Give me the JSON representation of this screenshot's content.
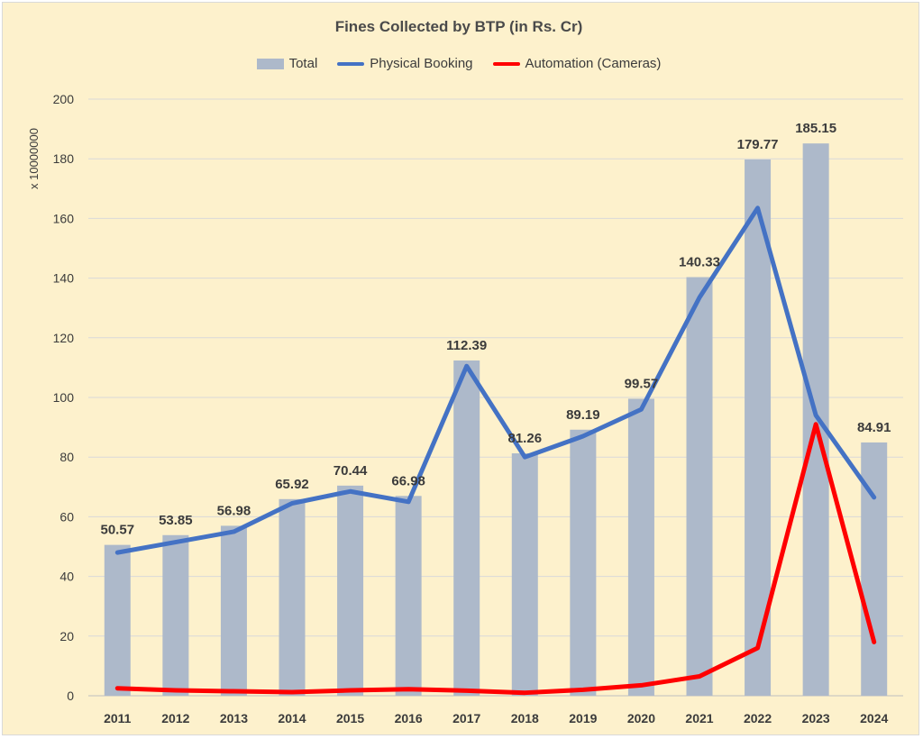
{
  "chart_data": {
    "type": "bar",
    "title": "Fines Collected by BTP (in Rs. Cr)",
    "ylabel": "x 10000000",
    "xlabel": "",
    "ylim": [
      0,
      200
    ],
    "yticks": [
      0,
      20,
      40,
      60,
      80,
      100,
      120,
      140,
      160,
      180,
      200
    ],
    "grid": true,
    "legend_position": "top",
    "categories": [
      "2011",
      "2012",
      "2013",
      "2014",
      "2015",
      "2016",
      "2017",
      "2018",
      "2019",
      "2020",
      "2021",
      "2022",
      "2023",
      "2024"
    ],
    "series": [
      {
        "name": "Total",
        "type": "bar",
        "color": "#adb9ca",
        "values": [
          50.57,
          53.85,
          56.98,
          65.92,
          70.44,
          66.98,
          112.39,
          81.26,
          89.19,
          99.57,
          140.33,
          179.77,
          185.15,
          84.91
        ],
        "data_labels": [
          "50.57",
          "53.85",
          "56.98",
          "65.92",
          "70.44",
          "66.98",
          "112.39",
          "81.26",
          "89.19",
          "99.57",
          "140.33",
          "179.77",
          "185.15",
          "84.91"
        ]
      },
      {
        "name": "Physical Booking",
        "type": "line",
        "color": "#4472c4",
        "values": [
          48,
          51.5,
          55,
          64.5,
          68.5,
          65,
          110.5,
          80,
          87,
          96,
          133.5,
          163.5,
          94,
          66.5
        ]
      },
      {
        "name": "Automation (Cameras)",
        "type": "line",
        "color": "#ff0000",
        "values": [
          2.5,
          1.8,
          1.5,
          1.2,
          1.8,
          2.2,
          1.7,
          1,
          2,
          3.5,
          6.5,
          16,
          91,
          18
        ]
      }
    ]
  }
}
